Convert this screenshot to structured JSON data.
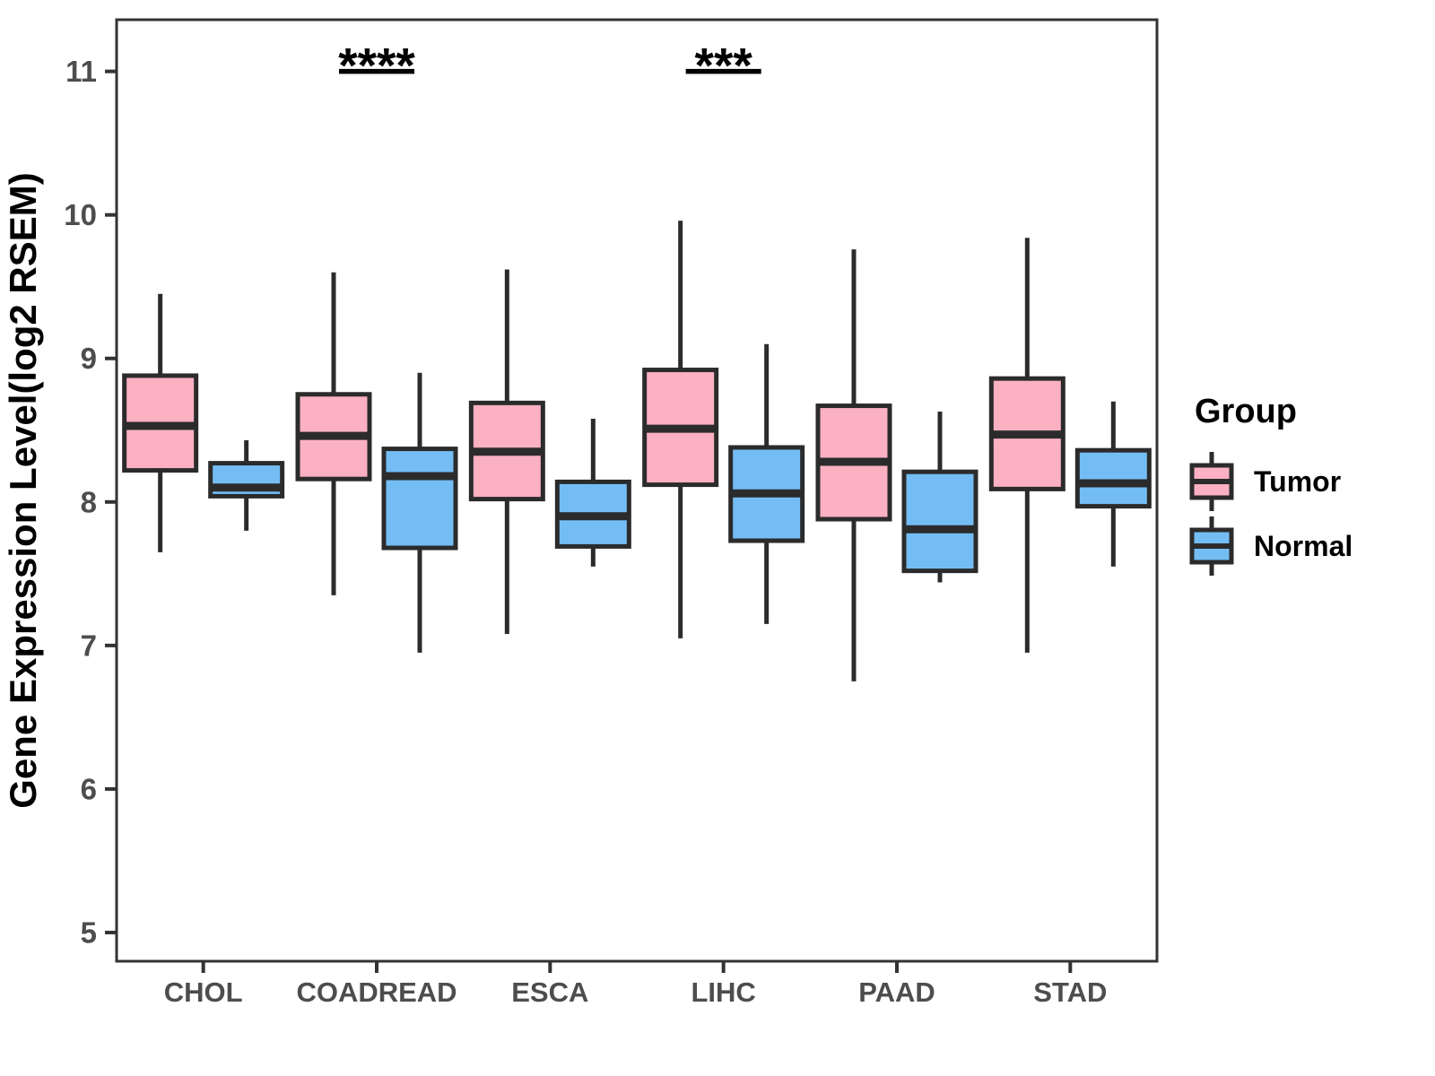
{
  "chart_data": {
    "type": "grouped_boxplot",
    "title": "",
    "xlabel": "",
    "ylabel": "Gene Expression Level(log2 RSEM)",
    "ylim": [
      4.8,
      11.36
    ],
    "yticks": [
      5,
      6,
      7,
      8,
      9,
      10,
      11
    ],
    "grid": "off",
    "categories": [
      "CHOL",
      "COADREAD",
      "ESCA",
      "LIHC",
      "PAAD",
      "STAD"
    ],
    "series": [
      {
        "name": "Tumor",
        "color": "#FBB1C2",
        "boxes": [
          {
            "min": 7.65,
            "q1": 8.22,
            "median": 8.53,
            "q3": 8.88,
            "max": 9.45
          },
          {
            "min": 7.35,
            "q1": 8.16,
            "median": 8.46,
            "q3": 8.75,
            "max": 9.6
          },
          {
            "min": 7.08,
            "q1": 8.02,
            "median": 8.35,
            "q3": 8.69,
            "max": 9.62
          },
          {
            "min": 7.05,
            "q1": 8.12,
            "median": 8.51,
            "q3": 8.92,
            "max": 9.96
          },
          {
            "min": 6.75,
            "q1": 7.88,
            "median": 8.28,
            "q3": 8.67,
            "max": 9.76
          },
          {
            "min": 6.95,
            "q1": 8.09,
            "median": 8.47,
            "q3": 8.86,
            "max": 9.84
          }
        ]
      },
      {
        "name": "Normal",
        "color": "#74BDF4",
        "boxes": [
          {
            "min": 7.8,
            "q1": 8.04,
            "median": 8.1,
            "q3": 8.27,
            "max": 8.43
          },
          {
            "min": 6.95,
            "q1": 7.68,
            "median": 8.18,
            "q3": 8.37,
            "max": 8.9
          },
          {
            "min": 7.55,
            "q1": 7.69,
            "median": 7.9,
            "q3": 8.14,
            "max": 8.58
          },
          {
            "min": 7.15,
            "q1": 7.73,
            "median": 8.06,
            "q3": 8.38,
            "max": 9.1
          },
          {
            "min": 7.44,
            "q1": 7.52,
            "median": 7.81,
            "q3": 8.21,
            "max": 8.63
          },
          {
            "min": 7.55,
            "q1": 7.97,
            "median": 8.13,
            "q3": 8.36,
            "max": 8.7
          }
        ]
      }
    ],
    "annotations": [
      {
        "category": "COADREAD",
        "label": "****",
        "y": 11.0
      },
      {
        "category": "LIHC",
        "label": "***",
        "y": 11.0
      }
    ],
    "legend": {
      "title": "Group",
      "position": "right",
      "entries": [
        {
          "label": "Tumor",
          "color": "#FBB1C2"
        },
        {
          "label": "Normal",
          "color": "#74BDF4"
        }
      ]
    }
  },
  "colors": {
    "tumor_fill": "#FBB1C2",
    "normal_fill": "#74BDF4",
    "box_stroke": "#2B2B2B",
    "panel_border": "#333333",
    "tick_mark": "#333333",
    "tick_label": "#4D4D4D",
    "axis_title": "#000000",
    "annotation": "#000000"
  }
}
